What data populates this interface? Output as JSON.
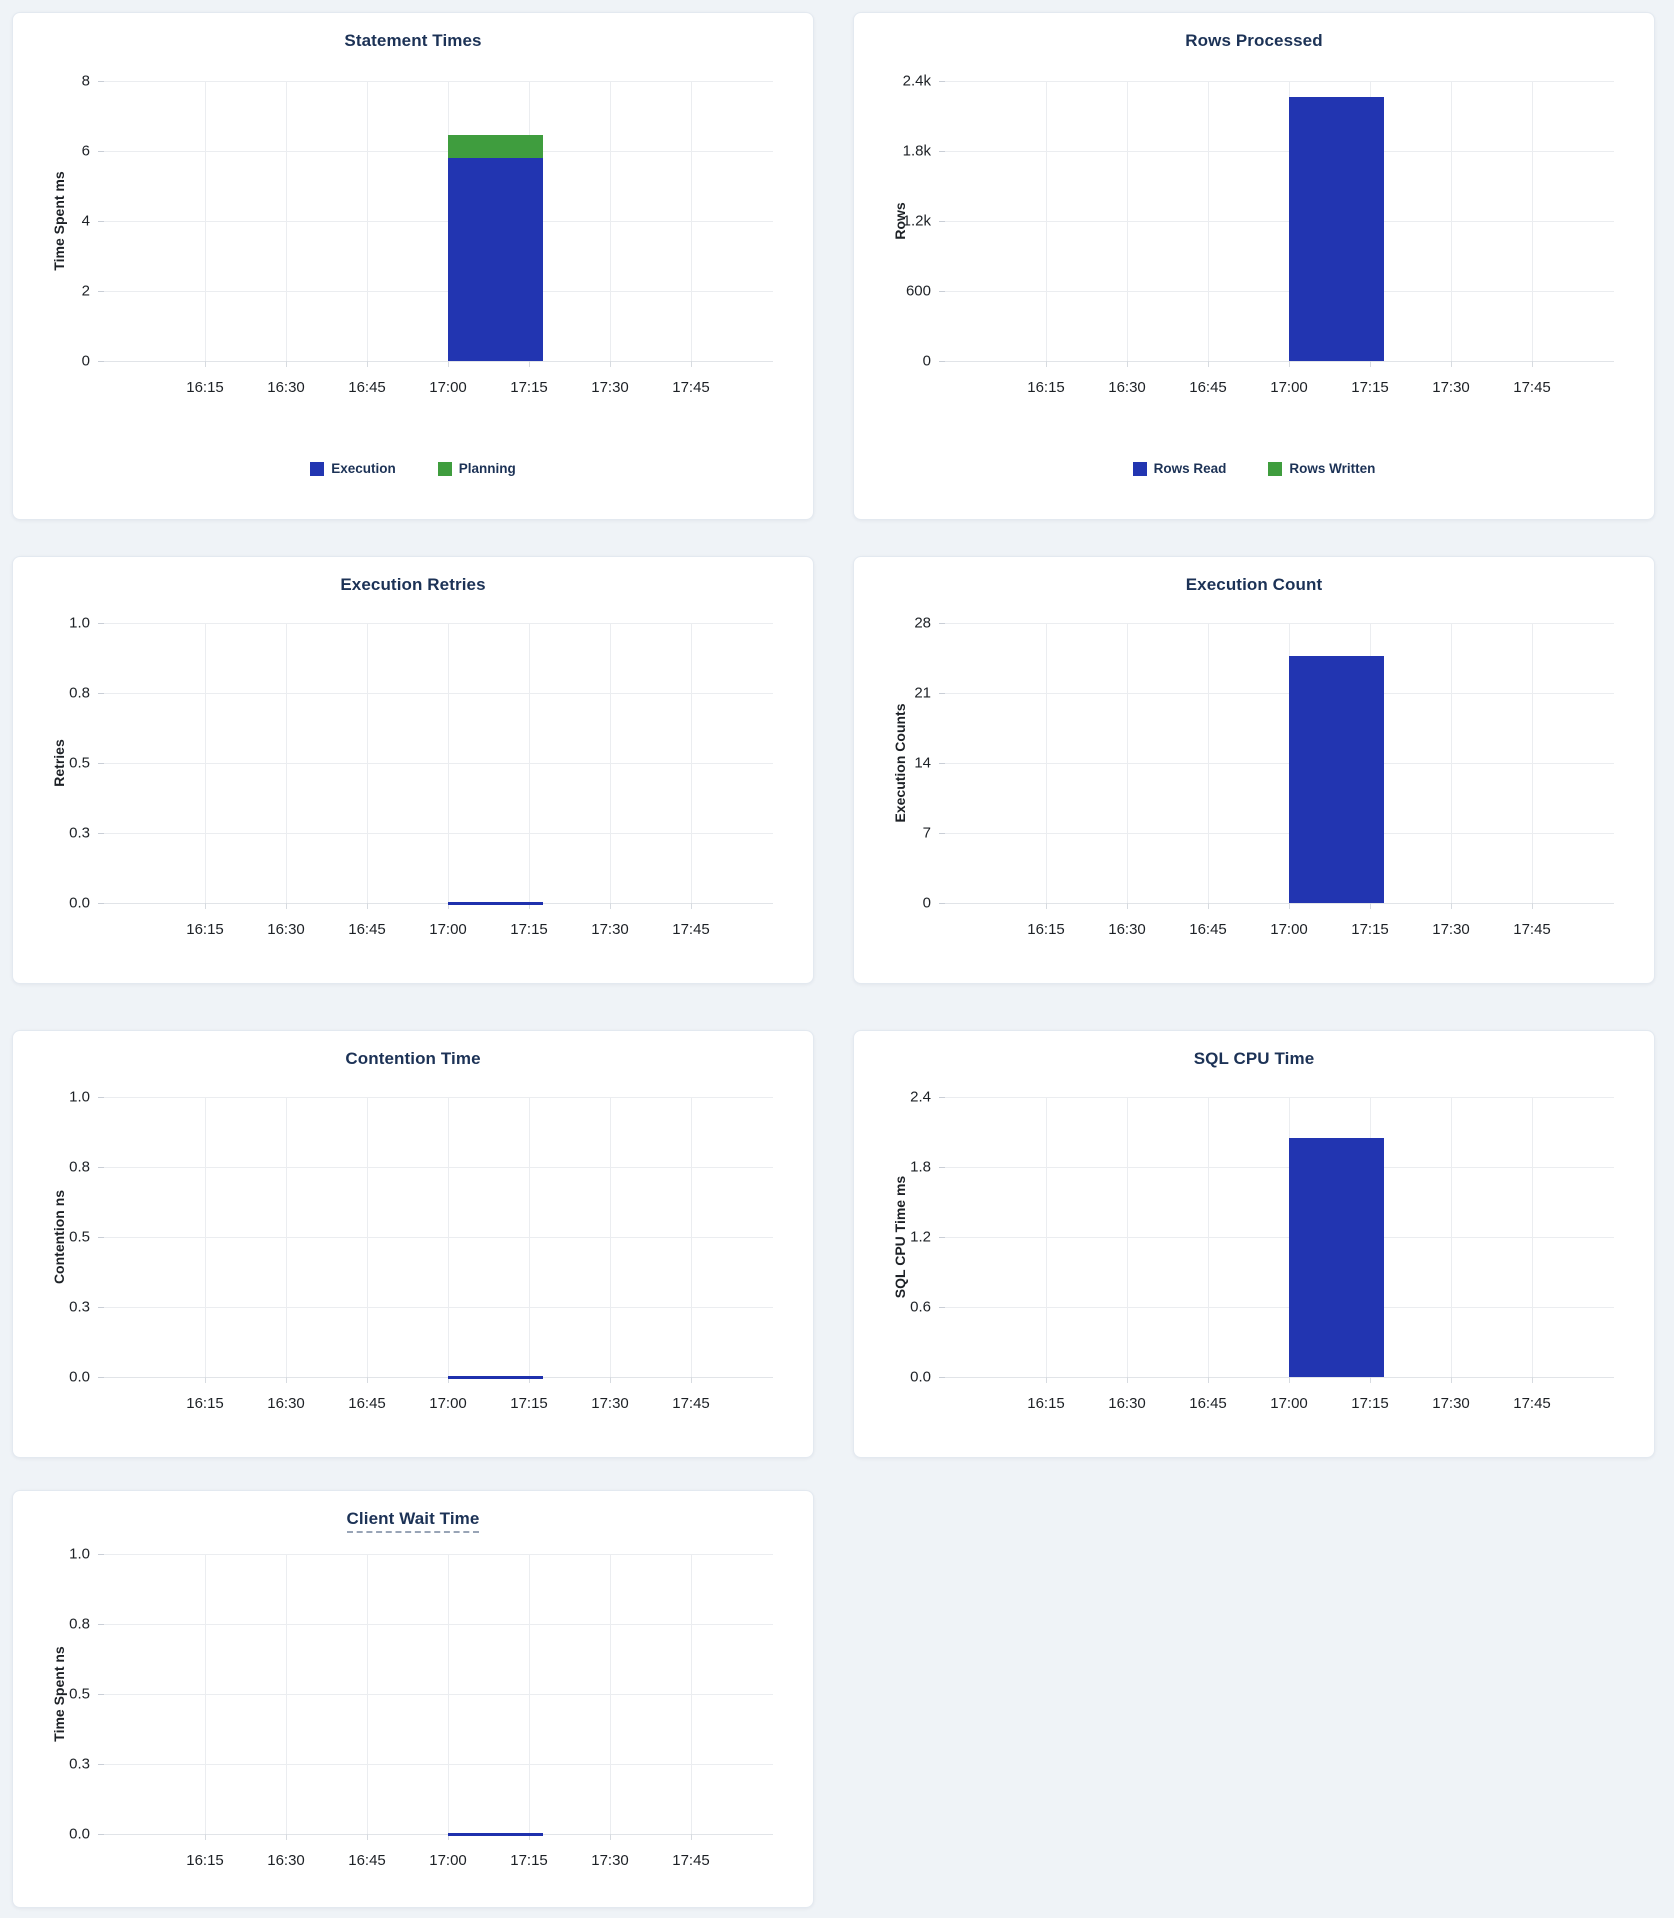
{
  "page": {
    "background_color": "#eff3f7",
    "card_background_color": "#ffffff",
    "card_border_color": "#e3e9f0"
  },
  "palette": {
    "bar_blue": "#2235b1",
    "bar_green": "#3f9d3e",
    "flat_line_blue": "#1f31ad",
    "title_color": "#1c3256",
    "tick_text_color": "#1d2126",
    "grid_color": "#ebedf0"
  },
  "chart_data": [
    {
      "type": "bar",
      "title": "Statement Times",
      "title_tooltip_underline": false,
      "ylabel": "Time Spent ms",
      "xlabel": "",
      "ylim": [
        0,
        8
      ],
      "ytick_labels": [
        "8",
        "6",
        "4",
        "2",
        "0"
      ],
      "ytick_values": [
        8,
        6,
        4,
        2,
        0
      ],
      "xtick_labels": [
        "16:15",
        "16:30",
        "16:45",
        "17:00",
        "17:15",
        "17:30",
        "17:45"
      ],
      "grid": true,
      "bar_time_span": {
        "start": "17:00",
        "end": "17:15"
      },
      "series": [
        {
          "name": "Execution",
          "value": 5.8,
          "color": "#2235b1"
        },
        {
          "name": "Planning",
          "value": 0.65,
          "color": "#3f9d3e"
        }
      ],
      "stacked": true,
      "legend_position": "bottom",
      "legend": [
        {
          "label": "Execution",
          "color": "#2235b1"
        },
        {
          "label": "Planning",
          "color": "#3f9d3e"
        }
      ]
    },
    {
      "type": "bar",
      "title": "Rows Processed",
      "title_tooltip_underline": false,
      "ylabel": "Rows",
      "xlabel": "",
      "ylim": [
        0,
        2400
      ],
      "ytick_labels": [
        "2.4k",
        "1.8k",
        "1.2k",
        "600",
        "0"
      ],
      "ytick_values": [
        2400,
        1800,
        1200,
        600,
        0
      ],
      "xtick_labels": [
        "16:15",
        "16:30",
        "16:45",
        "17:00",
        "17:15",
        "17:30",
        "17:45"
      ],
      "grid": true,
      "bar_time_span": {
        "start": "17:00",
        "end": "17:15"
      },
      "series": [
        {
          "name": "Rows Read",
          "value": 2260,
          "color": "#2235b1"
        },
        {
          "name": "Rows Written",
          "value": 0,
          "color": "#3f9d3e"
        }
      ],
      "stacked": true,
      "legend_position": "bottom",
      "legend": [
        {
          "label": "Rows Read",
          "color": "#2235b1"
        },
        {
          "label": "Rows Written",
          "color": "#3f9d3e"
        }
      ]
    },
    {
      "type": "line",
      "title": "Execution Retries",
      "title_tooltip_underline": false,
      "ylabel": "Retries",
      "xlabel": "",
      "ylim": [
        0,
        1
      ],
      "ytick_labels": [
        "1.0",
        "0.8",
        "0.5",
        "0.3",
        "0.0"
      ],
      "ytick_values": [
        1.0,
        0.75,
        0.5,
        0.25,
        0.0
      ],
      "xtick_labels": [
        "16:15",
        "16:30",
        "16:45",
        "17:00",
        "17:15",
        "17:30",
        "17:45"
      ],
      "grid": true,
      "bar_time_span": {
        "start": "17:00",
        "end": "17:15"
      },
      "series": [
        {
          "name": "Retries",
          "value": 0,
          "color": "#1f31ad"
        }
      ],
      "stacked": false,
      "legend_position": "none",
      "legend": []
    },
    {
      "type": "bar",
      "title": "Execution Count",
      "title_tooltip_underline": false,
      "ylabel": "Execution Counts",
      "xlabel": "",
      "ylim": [
        0,
        28
      ],
      "ytick_labels": [
        "28",
        "21",
        "14",
        "7",
        "0"
      ],
      "ytick_values": [
        28,
        21,
        14,
        7,
        0
      ],
      "xtick_labels": [
        "16:15",
        "16:30",
        "16:45",
        "17:00",
        "17:15",
        "17:30",
        "17:45"
      ],
      "grid": true,
      "bar_time_span": {
        "start": "17:00",
        "end": "17:15"
      },
      "series": [
        {
          "name": "Execution Count",
          "value": 24.7,
          "color": "#2235b1"
        }
      ],
      "stacked": false,
      "legend_position": "none",
      "legend": []
    },
    {
      "type": "line",
      "title": "Contention Time",
      "title_tooltip_underline": false,
      "ylabel": "Contention ns",
      "xlabel": "",
      "ylim": [
        0,
        1
      ],
      "ytick_labels": [
        "1.0",
        "0.8",
        "0.5",
        "0.3",
        "0.0"
      ],
      "ytick_values": [
        1.0,
        0.75,
        0.5,
        0.25,
        0.0
      ],
      "xtick_labels": [
        "16:15",
        "16:30",
        "16:45",
        "17:00",
        "17:15",
        "17:30",
        "17:45"
      ],
      "grid": true,
      "bar_time_span": {
        "start": "17:00",
        "end": "17:15"
      },
      "series": [
        {
          "name": "Contention",
          "value": 0,
          "color": "#1f31ad"
        }
      ],
      "stacked": false,
      "legend_position": "none",
      "legend": []
    },
    {
      "type": "bar",
      "title": "SQL CPU Time",
      "title_tooltip_underline": false,
      "ylabel": "SQL CPU Time ms",
      "xlabel": "",
      "ylim": [
        0,
        2.4
      ],
      "ytick_labels": [
        "2.4",
        "1.8",
        "1.2",
        "0.6",
        "0.0"
      ],
      "ytick_values": [
        2.4,
        1.8,
        1.2,
        0.6,
        0.0
      ],
      "xtick_labels": [
        "16:15",
        "16:30",
        "16:45",
        "17:00",
        "17:15",
        "17:30",
        "17:45"
      ],
      "grid": true,
      "bar_time_span": {
        "start": "17:00",
        "end": "17:15"
      },
      "series": [
        {
          "name": "SQL CPU Time",
          "value": 2.05,
          "color": "#2235b1"
        }
      ],
      "stacked": false,
      "legend_position": "none",
      "legend": []
    },
    {
      "type": "line",
      "title": "Client Wait Time",
      "title_tooltip_underline": true,
      "ylabel": "Time Spent ns",
      "xlabel": "",
      "ylim": [
        0,
        1
      ],
      "ytick_labels": [
        "1.0",
        "0.8",
        "0.5",
        "0.3",
        "0.0"
      ],
      "ytick_values": [
        1.0,
        0.75,
        0.5,
        0.25,
        0.0
      ],
      "xtick_labels": [
        "16:15",
        "16:30",
        "16:45",
        "17:00",
        "17:15",
        "17:30",
        "17:45"
      ],
      "grid": true,
      "bar_time_span": {
        "start": "17:00",
        "end": "17:15"
      },
      "series": [
        {
          "name": "Client Wait",
          "value": 0,
          "color": "#1f31ad"
        }
      ],
      "stacked": false,
      "legend_position": "none",
      "legend": []
    }
  ]
}
